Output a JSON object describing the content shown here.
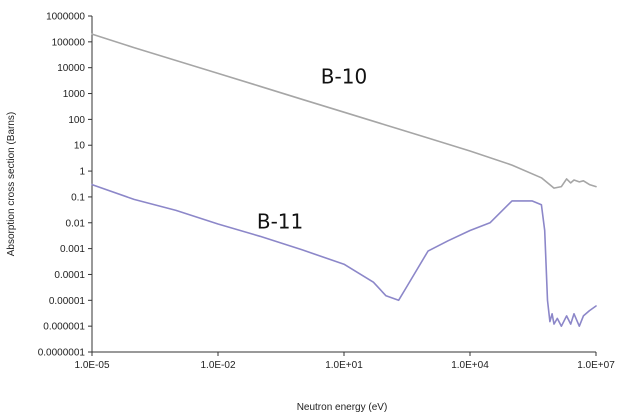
{
  "chart_data": {
    "type": "line",
    "title": "",
    "xlabel": "Neutron energy (eV)",
    "ylabel": "Absorption cross section (Barns)",
    "xscale": "log",
    "yscale": "log",
    "xlim": [
      1e-05,
      10000000
    ],
    "ylim": [
      1e-07,
      1000000
    ],
    "grid": false,
    "legend": "none",
    "x_tick_labels": [
      "1.0E-05",
      "1.0E-02",
      "1.0E+01",
      "1.0E+04",
      "1.0E+07"
    ],
    "x_ticks": [
      1e-05,
      0.01,
      10,
      10000,
      10000000
    ],
    "y_tick_labels": [
      "1000000",
      "100000",
      "10000",
      "1000",
      "100",
      "10",
      "1",
      "0.1",
      "0.01",
      "0.001",
      "0.0001",
      "0.00001",
      "0.000001",
      "0.0000001"
    ],
    "y_ticks": [
      1000000,
      100000,
      10000,
      1000,
      100,
      10,
      1,
      0.1,
      0.01,
      0.001,
      0.0001,
      1e-05,
      1e-06,
      1e-07
    ],
    "series": [
      {
        "name": "B-10",
        "color": "#a6a6a6",
        "x": [
          1e-05,
          0.0001,
          0.001,
          0.01,
          0.1,
          1,
          10,
          100,
          1000,
          10000,
          100000,
          500000,
          1000000,
          1500000,
          2000000,
          2500000,
          3000000,
          4000000,
          5000000,
          7000000,
          10000000
        ],
        "y": [
          200000,
          60000,
          19000,
          6000,
          1900,
          600,
          190,
          60,
          19,
          6,
          1.7,
          0.55,
          0.22,
          0.25,
          0.5,
          0.35,
          0.45,
          0.38,
          0.42,
          0.3,
          0.25
        ]
      },
      {
        "name": "B-11",
        "color": "#8c87c9",
        "x": [
          1e-05,
          0.0001,
          0.001,
          0.01,
          0.1,
          1,
          10,
          50,
          100,
          200,
          300,
          1000,
          3000,
          10000,
          30000,
          100000,
          300000,
          500000,
          600000,
          700000,
          800000,
          900000,
          1000000,
          1200000,
          1500000,
          2000000,
          2500000,
          3000000,
          4000000,
          5000000,
          7000000,
          10000000
        ],
        "y": [
          0.3,
          0.08,
          0.03,
          0.009,
          0.003,
          0.0009,
          0.00025,
          5e-05,
          1.5e-05,
          1e-05,
          3e-05,
          0.0008,
          0.002,
          0.005,
          0.01,
          0.07,
          0.07,
          0.05,
          0.005,
          1e-05,
          1.5e-06,
          3e-06,
          1.2e-06,
          2e-06,
          1e-06,
          2.5e-06,
          1.2e-06,
          3e-06,
          1e-06,
          2.5e-06,
          4e-06,
          6e-06
        ]
      }
    ],
    "annotations": [
      {
        "text": "B-10",
        "x": 10,
        "y": 2500
      },
      {
        "text": "B-11",
        "x": 0.3,
        "y": 0.006
      }
    ]
  }
}
